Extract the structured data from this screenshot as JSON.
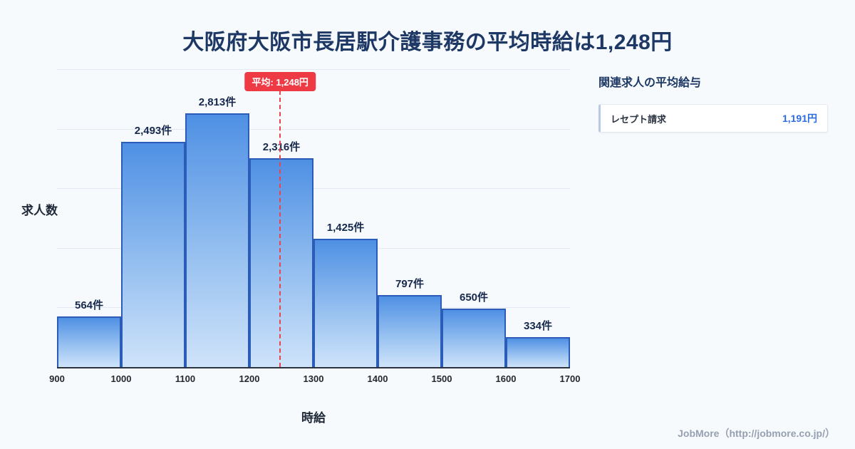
{
  "page": {
    "title": "大阪府大阪市長居駅介護事務の平均時給は1,248円",
    "footer": "JobMore（http://jobmore.co.jp/）"
  },
  "chart_data": {
    "type": "bar",
    "title": "大阪府大阪市長居駅介護事務の平均時給は1,248円",
    "xlabel": "時給",
    "ylabel": "求人数",
    "bin_edges": [
      900,
      1000,
      1100,
      1200,
      1300,
      1400,
      1500,
      1600,
      1700
    ],
    "values": [
      564,
      2493,
      2813,
      2316,
      1425,
      797,
      650,
      334
    ],
    "value_labels": [
      "564件",
      "2,493件",
      "2,813件",
      "2,316件",
      "1,425件",
      "797件",
      "650件",
      "334件"
    ],
    "ylim": [
      0,
      3300
    ],
    "xlim": [
      900,
      1700
    ],
    "grid": true,
    "legend": "none",
    "average": {
      "value": 1248,
      "label": "平均: 1,248円"
    }
  },
  "side_panel": {
    "title": "関連求人の平均給与",
    "items": [
      {
        "label": "レセプト請求",
        "value": "1,191円"
      }
    ]
  },
  "colors": {
    "background": "#f7fafd",
    "title_navy": "#1d3865",
    "bar_fill_top": "#4f90e4",
    "bar_fill_bottom": "#cfe3fa",
    "bar_border": "#2a5cb8",
    "average_red": "#ee3a45",
    "value_blue": "#2b6be6",
    "footer_gray": "#96a0b0"
  }
}
